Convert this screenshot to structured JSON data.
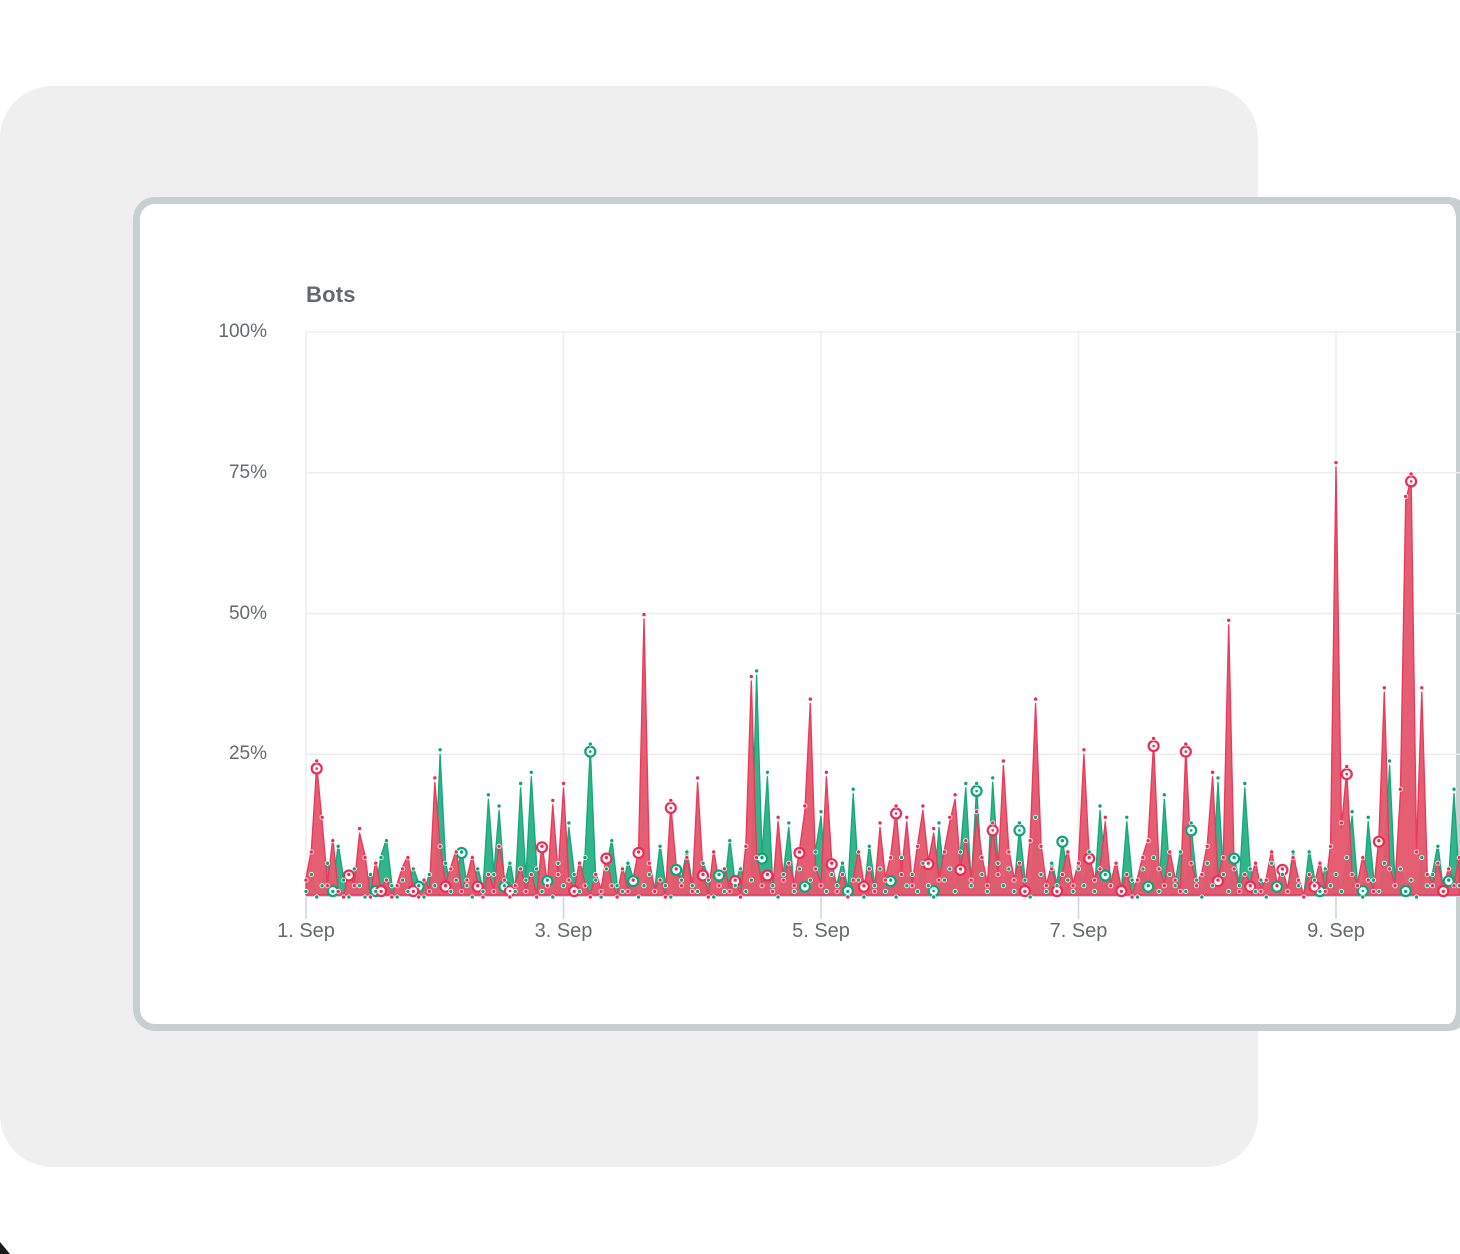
{
  "page": {
    "background": "#ffffff",
    "panel_color": "#efefef"
  },
  "card": {
    "background": "#ffffff",
    "border_color": "#c7d0cf"
  },
  "chart_data": {
    "type": "area",
    "title": "Bots",
    "grid": true,
    "legend": "none",
    "grid_color": "#ededed",
    "axis_color": "#ccd6eb",
    "label_color": "#666a6d",
    "y_axis": {
      "min": 0,
      "max": 100,
      "unit": "%",
      "tick_labels": [
        "100%",
        "75%",
        "50%",
        "25%"
      ],
      "tick_values": [
        100,
        75,
        50,
        25
      ]
    },
    "x_axis": {
      "tick_labels": [
        "1. Sep",
        "3. Sep",
        "5. Sep",
        "7. Sep",
        "9. Sep"
      ],
      "points_per_day": 24,
      "start": "1. Sep"
    },
    "series": [
      {
        "name": "green",
        "fill_color": "#2cb387",
        "line_color": "#17a87b",
        "dot_color": "#0ba677",
        "values": [
          1,
          4,
          0,
          2,
          6,
          1,
          9,
          3,
          0,
          5,
          2,
          0,
          4,
          1,
          7,
          10,
          2,
          0,
          3,
          1,
          5,
          2,
          0,
          4,
          2,
          25,
          6,
          1,
          3,
          8,
          2,
          0,
          5,
          1,
          17,
          4,
          15,
          2,
          6,
          1,
          19,
          3,
          21,
          5,
          1,
          3,
          0,
          6,
          2,
          12,
          4,
          1,
          7,
          26,
          3,
          0,
          5,
          10,
          2,
          1,
          6,
          3,
          0,
          2,
          4,
          1,
          9,
          2,
          0,
          5,
          3,
          8,
          2,
          1,
          6,
          3,
          0,
          4,
          1,
          10,
          2,
          5,
          1,
          3,
          39,
          7,
          21,
          2,
          0,
          4,
          12,
          1,
          5,
          2,
          3,
          8,
          14,
          1,
          4,
          2,
          6,
          1,
          18,
          3,
          0,
          9,
          2,
          5,
          1,
          3,
          0,
          7,
          2,
          4,
          1,
          6,
          2,
          0,
          12,
          3,
          5,
          1,
          8,
          19,
          2,
          19,
          4,
          1,
          20,
          6,
          2,
          5,
          1,
          12,
          3,
          0,
          13,
          4,
          1,
          6,
          2,
          10,
          3,
          1,
          5,
          2,
          8,
          1,
          15,
          4,
          2,
          6,
          1,
          13,
          3,
          0,
          5,
          2,
          7,
          1,
          17,
          4,
          2,
          8,
          1,
          12,
          3,
          0,
          6,
          2,
          20,
          4,
          1,
          7,
          2,
          19,
          5,
          1,
          3,
          0,
          6,
          2,
          4,
          1,
          8,
          2,
          0,
          8,
          3,
          1,
          5,
          2,
          4,
          1,
          7,
          14,
          2,
          0,
          13,
          3,
          1,
          6,
          23,
          2,
          5,
          1,
          3,
          0,
          7,
          2,
          4,
          9,
          1,
          3,
          18,
          2
        ]
      },
      {
        "name": "red",
        "fill_color": "#e4596f",
        "line_color": "#e93b5d",
        "dot_color": "#ee2b52",
        "values": [
          3,
          8,
          23,
          13,
          2,
          10,
          1,
          0,
          4,
          2,
          11,
          7,
          0,
          6,
          1,
          3,
          0,
          2,
          5,
          7,
          1,
          0,
          3,
          1,
          20,
          9,
          2,
          5,
          8,
          1,
          3,
          7,
          2,
          0,
          4,
          1,
          9,
          3,
          0,
          2,
          5,
          1,
          4,
          0,
          9,
          2,
          16,
          4,
          19,
          3,
          1,
          6,
          2,
          0,
          4,
          1,
          7,
          2,
          0,
          5,
          1,
          3,
          8,
          49,
          6,
          1,
          3,
          0,
          16,
          5,
          2,
          7,
          1,
          20,
          4,
          0,
          8,
          2,
          5,
          1,
          3,
          0,
          9,
          38,
          7,
          2,
          4,
          1,
          13,
          3,
          6,
          2,
          8,
          15,
          34,
          5,
          2,
          21,
          6,
          1,
          4,
          0,
          3,
          8,
          2,
          5,
          1,
          12,
          3,
          7,
          15,
          4,
          13,
          2,
          9,
          15,
          6,
          11,
          3,
          8,
          13,
          17,
          5,
          10,
          3,
          14,
          7,
          2,
          12,
          4,
          23,
          8,
          3,
          6,
          1,
          10,
          34,
          9,
          2,
          5,
          1,
          4,
          8,
          2,
          6,
          25,
          7,
          3,
          5,
          13,
          2,
          6,
          1,
          4,
          0,
          3,
          7,
          10,
          27,
          5,
          2,
          8,
          3,
          1,
          26,
          6,
          2,
          4,
          9,
          21,
          3,
          7,
          48,
          5,
          1,
          4,
          2,
          6,
          1,
          3,
          8,
          2,
          5,
          1,
          7,
          3,
          0,
          4,
          2,
          6,
          1,
          9,
          76,
          12,
          22,
          4,
          2,
          7,
          3,
          1,
          10,
          36,
          5,
          2,
          18,
          70,
          74,
          8,
          36,
          4,
          2,
          6,
          1,
          5,
          2,
          7
        ]
      }
    ]
  }
}
